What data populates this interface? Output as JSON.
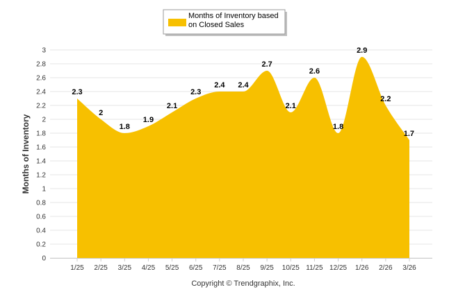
{
  "chart_data": {
    "type": "area",
    "title": "",
    "xlabel": "",
    "ylabel": "Months of Inventory",
    "categories": [
      "1/25",
      "2/25",
      "3/25",
      "4/25",
      "5/25",
      "6/25",
      "7/25",
      "8/25",
      "9/25",
      "10/25",
      "11/25",
      "12/25",
      "1/26",
      "2/26",
      "3/26"
    ],
    "series": [
      {
        "name": "Months of Inventory based on Closed Sales",
        "values": [
          2.3,
          2,
          1.8,
          1.9,
          2.1,
          2.3,
          2.4,
          2.4,
          2.7,
          2.1,
          2.6,
          1.8,
          2.9,
          2.2,
          1.7
        ],
        "labels": [
          "2.3",
          "2",
          "1.8",
          "1.9",
          "2.1",
          "2.3",
          "2.4",
          "2.4",
          "2.7",
          "2.1",
          "2.6",
          "1.8",
          "2.9",
          "2.2",
          "1.7"
        ],
        "color": "#F7C000"
      }
    ],
    "ylim": [
      0,
      3
    ],
    "yticks": [
      "0",
      "0.2",
      "0.4",
      "0.6",
      "0.8",
      "1",
      "1.2",
      "1.4",
      "1.6",
      "1.8",
      "2",
      "2.2",
      "2.4",
      "2.6",
      "2.8",
      "3"
    ],
    "grid": true,
    "legend": {
      "position": "top-center",
      "line1": "Months of Inventory based",
      "line2": "on Closed Sales"
    }
  },
  "footer": {
    "copyright": "Copyright © Trendgraphix, Inc."
  },
  "colors": {
    "fill": "#F7C000",
    "grid": "#E6E6E6",
    "axis": "#CCCCCC"
  }
}
